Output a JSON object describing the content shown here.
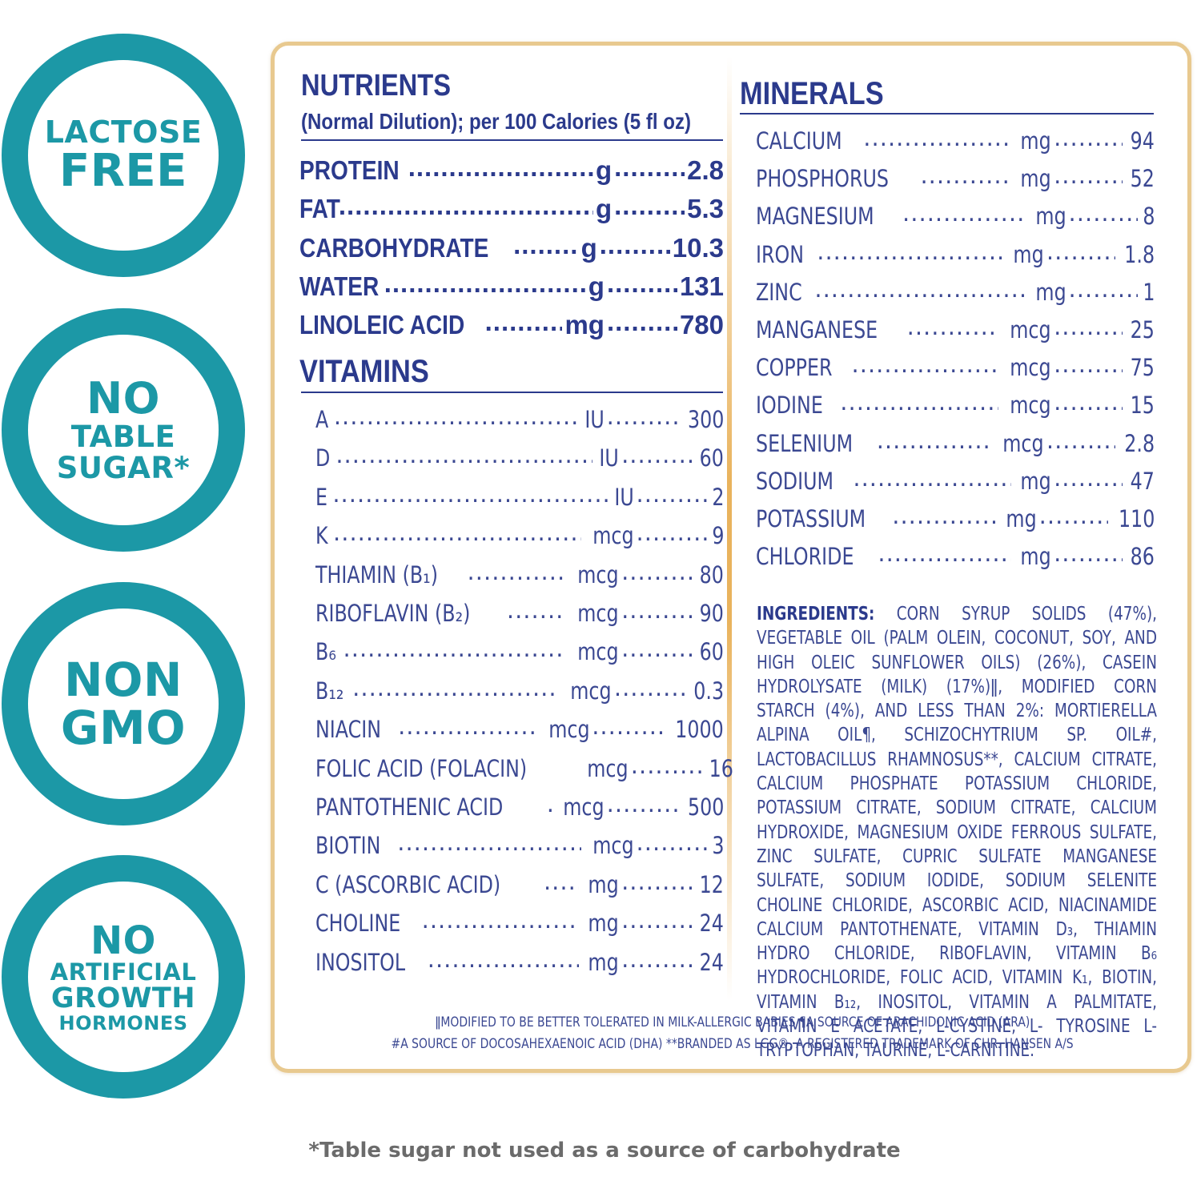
{
  "badges": {
    "lactose": [
      "LACTOSE",
      "FREE"
    ],
    "sugar": [
      "NO",
      "TABLE",
      "SUGAR*"
    ],
    "gmo": [
      "NON",
      "GMO"
    ],
    "hormones": [
      "NO",
      "ARTIFICIAL",
      "GROWTH",
      "HORMONES"
    ]
  },
  "nutrients": {
    "title": "NUTRIENTS",
    "subtitle": "(Normal Dilution); per 100 Calories (5 fl oz)",
    "rows": [
      {
        "name": "PROTEIN",
        "unit": "g",
        "value": "2.8"
      },
      {
        "name": "FAT",
        "unit": "g",
        "value": "5.3"
      },
      {
        "name": "CARBOHYDRATE",
        "unit": "g",
        "value": "10.3"
      },
      {
        "name": "WATER",
        "unit": "g",
        "value": "131"
      },
      {
        "name": "LINOLEIC ACID",
        "unit": "mg",
        "value": "780"
      }
    ]
  },
  "vitamins": {
    "title": "VITAMINS",
    "rows": [
      {
        "name": "A",
        "unit": "IU",
        "value": "300"
      },
      {
        "name": "D",
        "unit": "IU",
        "value": "60"
      },
      {
        "name": "E",
        "unit": "IU",
        "value": "2"
      },
      {
        "name": "K",
        "unit": "mcg",
        "value": "9"
      },
      {
        "name": "THIAMIN (B₁)",
        "unit": "mcg",
        "value": "80"
      },
      {
        "name": "RIBOFLAVIN (B₂)",
        "unit": "mcg",
        "value": "90"
      },
      {
        "name": "B₆",
        "unit": "mcg",
        "value": "60"
      },
      {
        "name": "B₁₂",
        "unit": "mcg",
        "value": "0.3"
      },
      {
        "name": "NIACIN",
        "unit": "mcg",
        "value": "1000"
      },
      {
        "name": "FOLIC ACID (FOLACIN)",
        "unit": "mcg",
        "value": "16"
      },
      {
        "name": "PANTOTHENIC ACID",
        "unit": "mcg",
        "value": "500"
      },
      {
        "name": "BIOTIN",
        "unit": "mcg",
        "value": "3"
      },
      {
        "name": "C (ASCORBIC ACID)",
        "unit": "mg",
        "value": "12"
      },
      {
        "name": "CHOLINE",
        "unit": "mg",
        "value": "24"
      },
      {
        "name": "INOSITOL",
        "unit": "mg",
        "value": "24"
      }
    ]
  },
  "minerals": {
    "title": "MINERALS",
    "rows": [
      {
        "name": "CALCIUM",
        "unit": "mg",
        "value": "94"
      },
      {
        "name": "PHOSPHORUS",
        "unit": "mg",
        "value": "52"
      },
      {
        "name": "MAGNESIUM",
        "unit": "mg",
        "value": "8"
      },
      {
        "name": "IRON",
        "unit": "mg",
        "value": "1.8"
      },
      {
        "name": "ZINC",
        "unit": "mg",
        "value": "1"
      },
      {
        "name": "MANGANESE",
        "unit": "mcg",
        "value": "25"
      },
      {
        "name": "COPPER",
        "unit": "mcg",
        "value": "75"
      },
      {
        "name": "IODINE",
        "unit": "mcg",
        "value": "15"
      },
      {
        "name": "SELENIUM",
        "unit": "mcg",
        "value": "2.8"
      },
      {
        "name": "SODIUM",
        "unit": "mg",
        "value": "47"
      },
      {
        "name": "POTASSIUM",
        "unit": "mg",
        "value": "110"
      },
      {
        "name": "CHLORIDE",
        "unit": "mg",
        "value": "86"
      }
    ]
  },
  "ingredients": {
    "label": "INGREDIENTS:",
    "text": "CORN SYRUP SOLIDS (47%), VEGETABLE OIL (PALM OLEIN, COCONUT, SOY, AND HIGH OLEIC SUNFLOWER OILS) (26%), CASEIN HYDROLYSATE (MILK) (17%)ǁ, MODIFIED CORN STARCH (4%), AND LESS THAN 2%: MORTIERELLA ALPINA OIL¶, SCHIZOCHYTRIUM SP. OIL#, LACTOBACILLUS RHAMNOSUS**, CALCIUM CITRATE, CALCIUM PHOSPHATE POTASSIUM CHLORIDE, POTASSIUM CITRATE, SODIUM CITRATE, CALCIUM HYDROXIDE, MAGNESIUM OXIDE FERROUS SULFATE, ZINC SULFATE, CUPRIC SULFATE MANGANESE SULFATE, SODIUM IODIDE, SODIUM SELENITE CHOLINE CHLORIDE, ASCORBIC ACID, NIACINAMIDE CALCIUM PANTOTHENATE, VITAMIN D₃, THIAMIN HYDRO CHLORIDE, RIBOFLAVIN, VITAMIN B₆ HYDROCHLORIDE, FOLIC ACID, VITAMIN K₁, BIOTIN, VITAMIN B₁₂, INOSITOL, VITAMIN A PALMITATE, VITAMIN E ACETATE, L-CYSTINE, L- TYROSINE L-TRYPTOPHAN, TAURINE, L-CARNITINE."
  },
  "footnotes": [
    "ǁMODIFIED TO BE BETTER TOLERATED IN MILK-ALLERGIC BABIES ¶A SOURCE OF ARACHIDONIC ACID (ARA)",
    "#A SOURCE OF DOCOSAHEXAENOIC ACID (DHA) **BRANDED AS LGG®, A REGISTERED TRADEMARK OF CHR. HANSEN A/S"
  ],
  "disclaimer": "*Table sugar not used as a source of carbohydrate",
  "colors": {
    "teal": "#1c98a6",
    "navy": "#2b3a8c",
    "gold_border": "#e8c98f",
    "gray_text": "#6b6b6b"
  }
}
